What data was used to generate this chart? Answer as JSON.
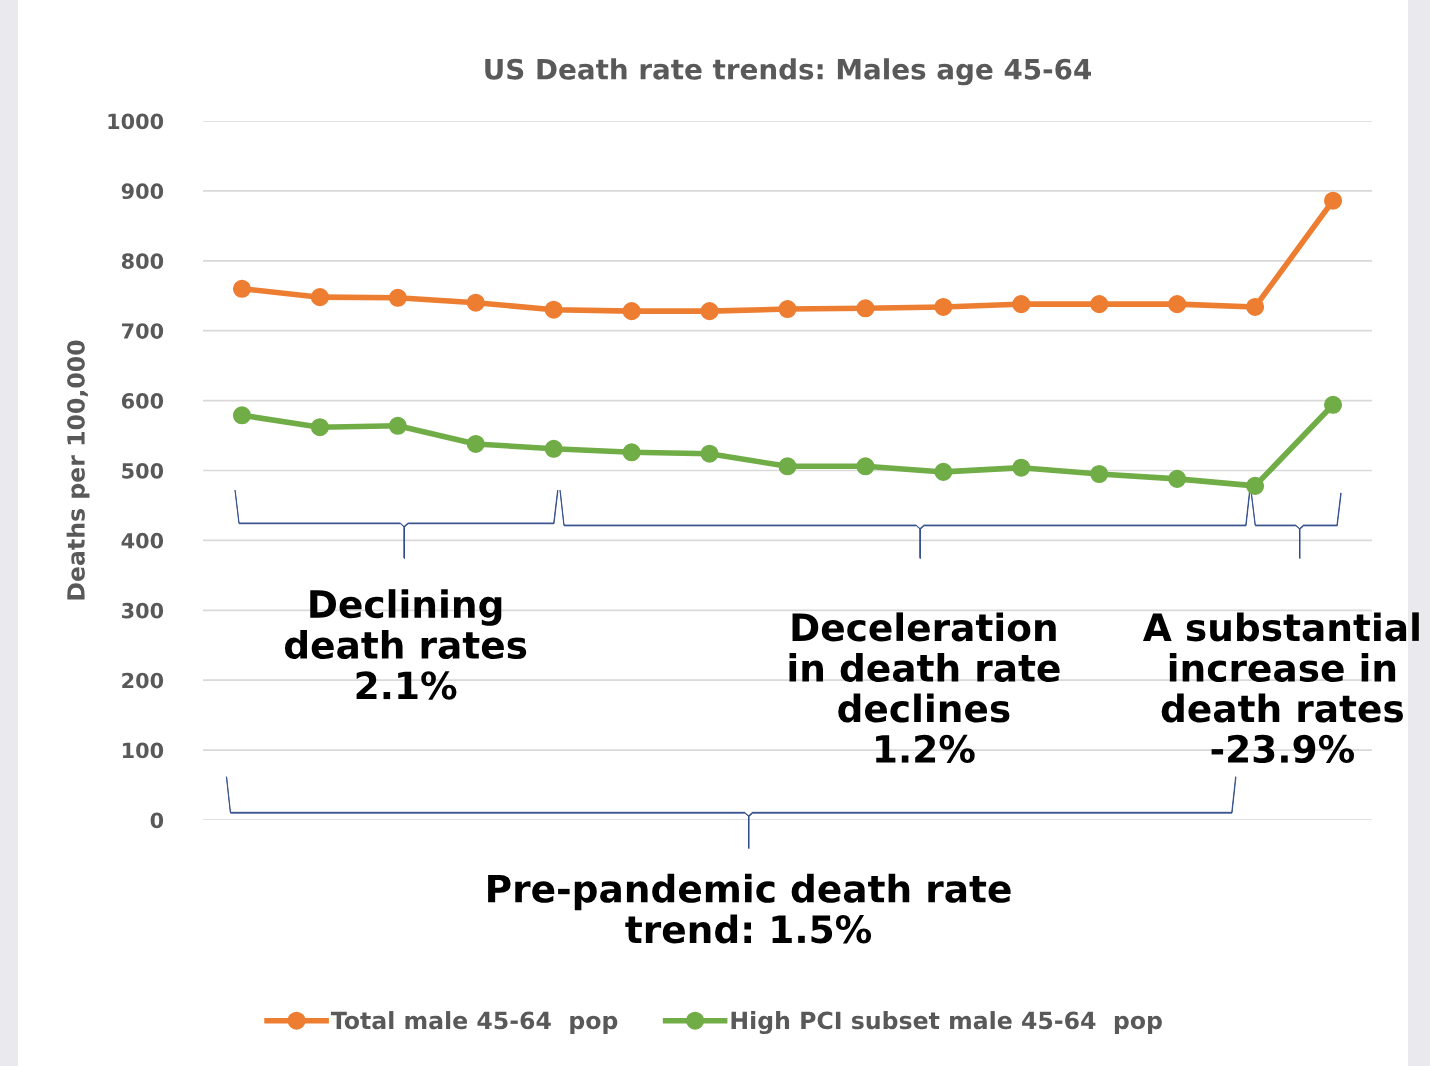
{
  "chart_data": {
    "type": "line",
    "title": "US Death rate trends: Males age 45-64",
    "ylabel": "Deaths per 100,000",
    "categories": [
      null,
      null,
      null,
      null,
      null,
      null,
      null,
      null,
      null,
      null,
      null,
      null,
      null,
      null,
      null
    ],
    "series": [
      {
        "name": "Total male 45-64  pop",
        "color": "#ed7d31",
        "values": [
          760,
          748,
          747,
          740,
          730,
          728,
          728,
          731,
          732,
          734,
          738,
          738,
          738,
          734,
          886
        ]
      },
      {
        "name": "High PCI subset male 45-64  pop",
        "color": "#70ad47",
        "values": [
          579,
          562,
          564,
          538,
          531,
          526,
          524,
          506,
          506,
          498,
          504,
          495,
          488,
          478,
          594
        ]
      }
    ],
    "ylim": [
      0,
      1000
    ],
    "yticks": [
      0,
      100,
      200,
      300,
      400,
      500,
      600,
      700,
      800,
      900,
      1000
    ],
    "grid": "y",
    "legend": "bottom",
    "marker": "circle",
    "line_style": "solid",
    "annotations": [
      "Declining\ndeath rates\n2.1%",
      "Deceleration\nin death rate\ndeclines\n1.2%",
      "A substantial\nincrease in\ndeath rates\n-23.9%",
      "Pre-pandemic death rate\ntrend: 1.5%"
    ]
  }
}
